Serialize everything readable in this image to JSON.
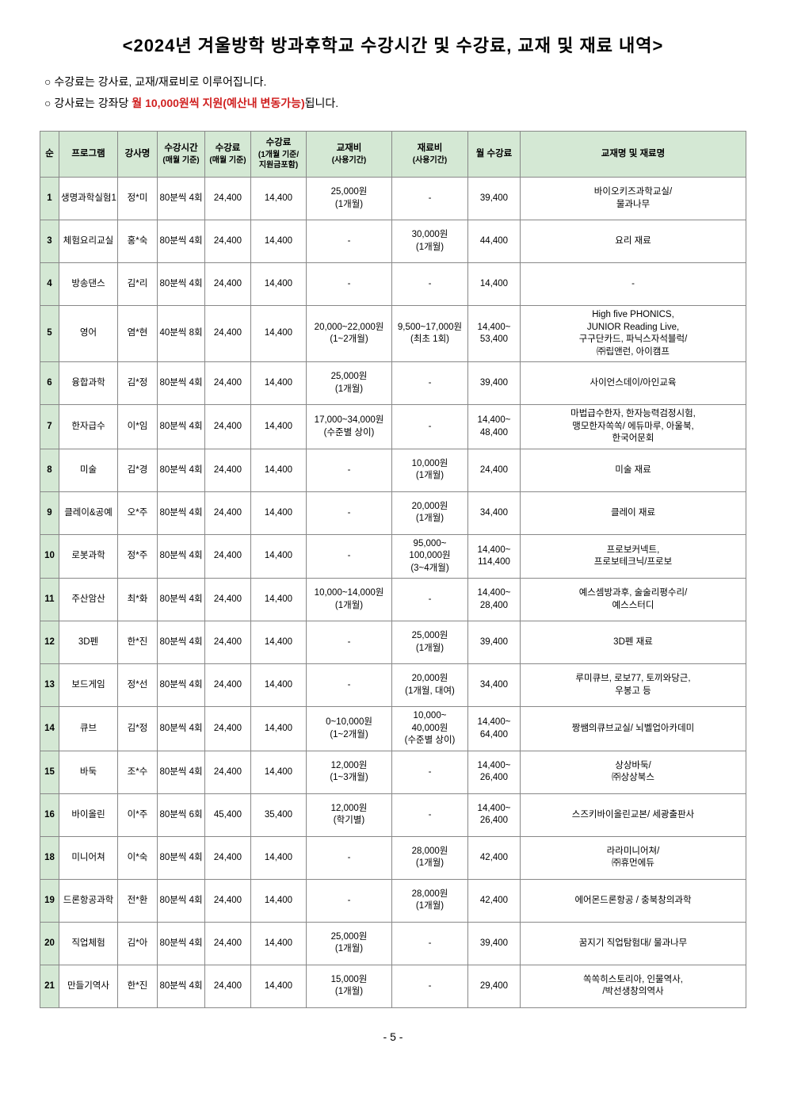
{
  "title": "<2024년 겨울방학 방과후학교 수강시간 및 수강료, 교재 및 재료 내역>",
  "note1_a": "○ 수강료는 강사료, 교재/재료비로 이루어집니다.",
  "note2_a": "○ 강사료는 강좌당 ",
  "note2_highlight": "월 10,000원씩 지원(예산내 변동가능)",
  "note2_b": "됩니다.",
  "page_number": "- 5 -",
  "headers": {
    "num": "순",
    "program": "프로그램",
    "teacher": "강사명",
    "time": "수강시간",
    "time_sub": "(매월 기준)",
    "fee1": "수강료",
    "fee1_sub": "(매월 기준)",
    "fee2": "수강료",
    "fee2_sub": "(1개월 기준/지원금포함)",
    "book": "교재비",
    "book_sub": "(사용기간)",
    "material": "재료비",
    "material_sub": "(사용기간)",
    "monthly": "월 수강료",
    "names": "교재명 및 재료명"
  },
  "rows": [
    {
      "num": "1",
      "program": "생명과학실험1",
      "teacher": "정*미",
      "time": "80분씩 4회",
      "fee1": "24,400",
      "fee2": "14,400",
      "book": "25,000원\n(1개월)",
      "material": "-",
      "monthly": "39,400",
      "names": "바이오키즈과학교실/\n물과나무"
    },
    {
      "num": "3",
      "program": "체험요리교실",
      "teacher": "홍*숙",
      "time": "80분씩 4회",
      "fee1": "24,400",
      "fee2": "14,400",
      "book": "-",
      "material": "30,000원\n(1개월)",
      "monthly": "44,400",
      "names": "요리 재료"
    },
    {
      "num": "4",
      "program": "방송댄스",
      "teacher": "김*리",
      "time": "80분씩 4회",
      "fee1": "24,400",
      "fee2": "14,400",
      "book": "-",
      "material": "-",
      "monthly": "14,400",
      "names": "-"
    },
    {
      "num": "5",
      "program": "영어",
      "teacher": "염*현",
      "time": "40분씩 8회",
      "fee1": "24,400",
      "fee2": "14,400",
      "book": "20,000~22,000원\n(1~2개월)",
      "material": "9,500~17,000원\n(최초 1회)",
      "monthly": "14,400~\n53,400",
      "names": "High five PHONICS,\nJUNIOR Reading Live,\n구구단카드, 파닉스자석블럭/\n㈜립앤런, 아이캠프"
    },
    {
      "num": "6",
      "program": "융합과학",
      "teacher": "김*정",
      "time": "80분씩 4회",
      "fee1": "24,400",
      "fee2": "14,400",
      "book": "25,000원\n(1개월)",
      "material": "-",
      "monthly": "39,400",
      "names": "사이언스데이/아인교육"
    },
    {
      "num": "7",
      "program": "한자급수",
      "teacher": "이*임",
      "time": "80분씩 4회",
      "fee1": "24,400",
      "fee2": "14,400",
      "book": "17,000~34,000원\n(수준별 상이)",
      "material": "-",
      "monthly": "14,400~\n48,400",
      "names": "마법급수한자, 한자능력검정시험,\n맹모한자쏙쏙/ 에듀마루, 아울북,\n한국어문회"
    },
    {
      "num": "8",
      "program": "미술",
      "teacher": "김*경",
      "time": "80분씩 4회",
      "fee1": "24,400",
      "fee2": "14,400",
      "book": "-",
      "material": "10,000원\n(1개월)",
      "monthly": "24,400",
      "names": "미술 재료"
    },
    {
      "num": "9",
      "program": "클레이&공예",
      "teacher": "오*주",
      "time": "80분씩 4회",
      "fee1": "24,400",
      "fee2": "14,400",
      "book": "-",
      "material": "20,000원\n(1개월)",
      "monthly": "34,400",
      "names": "클레이 재료"
    },
    {
      "num": "10",
      "program": "로봇과학",
      "teacher": "정*주",
      "time": "80분씩 4회",
      "fee1": "24,400",
      "fee2": "14,400",
      "book": "-",
      "material": "95,000~\n100,000원\n(3~4개월)",
      "monthly": "14,400~\n114,400",
      "names": "프로보커넥트,\n프로보테크닉/프로보"
    },
    {
      "num": "11",
      "program": "주산암산",
      "teacher": "최*화",
      "time": "80분씩 4회",
      "fee1": "24,400",
      "fee2": "14,400",
      "book": "10,000~14,000원\n(1개월)",
      "material": "-",
      "monthly": "14,400~\n28,400",
      "names": "예스셈방과후, 술술리평수리/\n예스스터디"
    },
    {
      "num": "12",
      "program": "3D펜",
      "teacher": "한*진",
      "time": "80분씩 4회",
      "fee1": "24,400",
      "fee2": "14,400",
      "book": "-",
      "material": "25,000원\n(1개월)",
      "monthly": "39,400",
      "names": "3D펜 재료"
    },
    {
      "num": "13",
      "program": "보드게임",
      "teacher": "정*선",
      "time": "80분씩 4회",
      "fee1": "24,400",
      "fee2": "14,400",
      "book": "-",
      "material": "20,000원\n(1개월, 대여)",
      "monthly": "34,400",
      "names": "루미큐브, 로보77, 토끼와당근,\n우봉고 등"
    },
    {
      "num": "14",
      "program": "큐브",
      "teacher": "김*정",
      "time": "80분씩 4회",
      "fee1": "24,400",
      "fee2": "14,400",
      "book": "0~10,000원\n(1~2개월)",
      "material": "10,000~\n40,000원\n(수준별 상이)",
      "monthly": "14,400~\n64,400",
      "names": "짱쌤의큐브교실/ 뇌벨업아카데미"
    },
    {
      "num": "15",
      "program": "바둑",
      "teacher": "조*수",
      "time": "80분씩 4회",
      "fee1": "24,400",
      "fee2": "14,400",
      "book": "12,000원\n(1~3개월)",
      "material": "-",
      "monthly": "14,400~\n26,400",
      "names": "상상바둑/\n㈜상상북스"
    },
    {
      "num": "16",
      "program": "바이올린",
      "teacher": "이*주",
      "time": "80분씩 6회",
      "fee1": "45,400",
      "fee2": "35,400",
      "book": "12,000원\n(학기별)",
      "material": "-",
      "monthly": "14,400~\n26,400",
      "names": "스즈키바이올린교본/ 세광출판사"
    },
    {
      "num": "18",
      "program": "미니어쳐",
      "teacher": "이*숙",
      "time": "80분씩 4회",
      "fee1": "24,400",
      "fee2": "14,400",
      "book": "-",
      "material": "28,000원\n(1개월)",
      "monthly": "42,400",
      "names": "라라미니어쳐/\n㈜휴먼에듀"
    },
    {
      "num": "19",
      "program": "드론항공과학",
      "teacher": "전*환",
      "time": "80분씩 4회",
      "fee1": "24,400",
      "fee2": "14,400",
      "book": "-",
      "material": "28,000원\n(1개월)",
      "monthly": "42,400",
      "names": "에어몬드론항공 / 충북창의과학"
    },
    {
      "num": "20",
      "program": "직업체험",
      "teacher": "김*아",
      "time": "80분씩 4회",
      "fee1": "24,400",
      "fee2": "14,400",
      "book": "25,000원\n(1개월)",
      "material": "-",
      "monthly": "39,400",
      "names": "꿈지기 직업탐험대/ 물과나무"
    },
    {
      "num": "21",
      "program": "만들기역사",
      "teacher": "한*진",
      "time": "80분씩 4회",
      "fee1": "24,400",
      "fee2": "14,400",
      "book": "15,000원\n(1개월)",
      "material": "-",
      "monthly": "29,400",
      "names": "쏙쏙히스토리아, 인물역사,\n/박선생창의역사"
    }
  ]
}
